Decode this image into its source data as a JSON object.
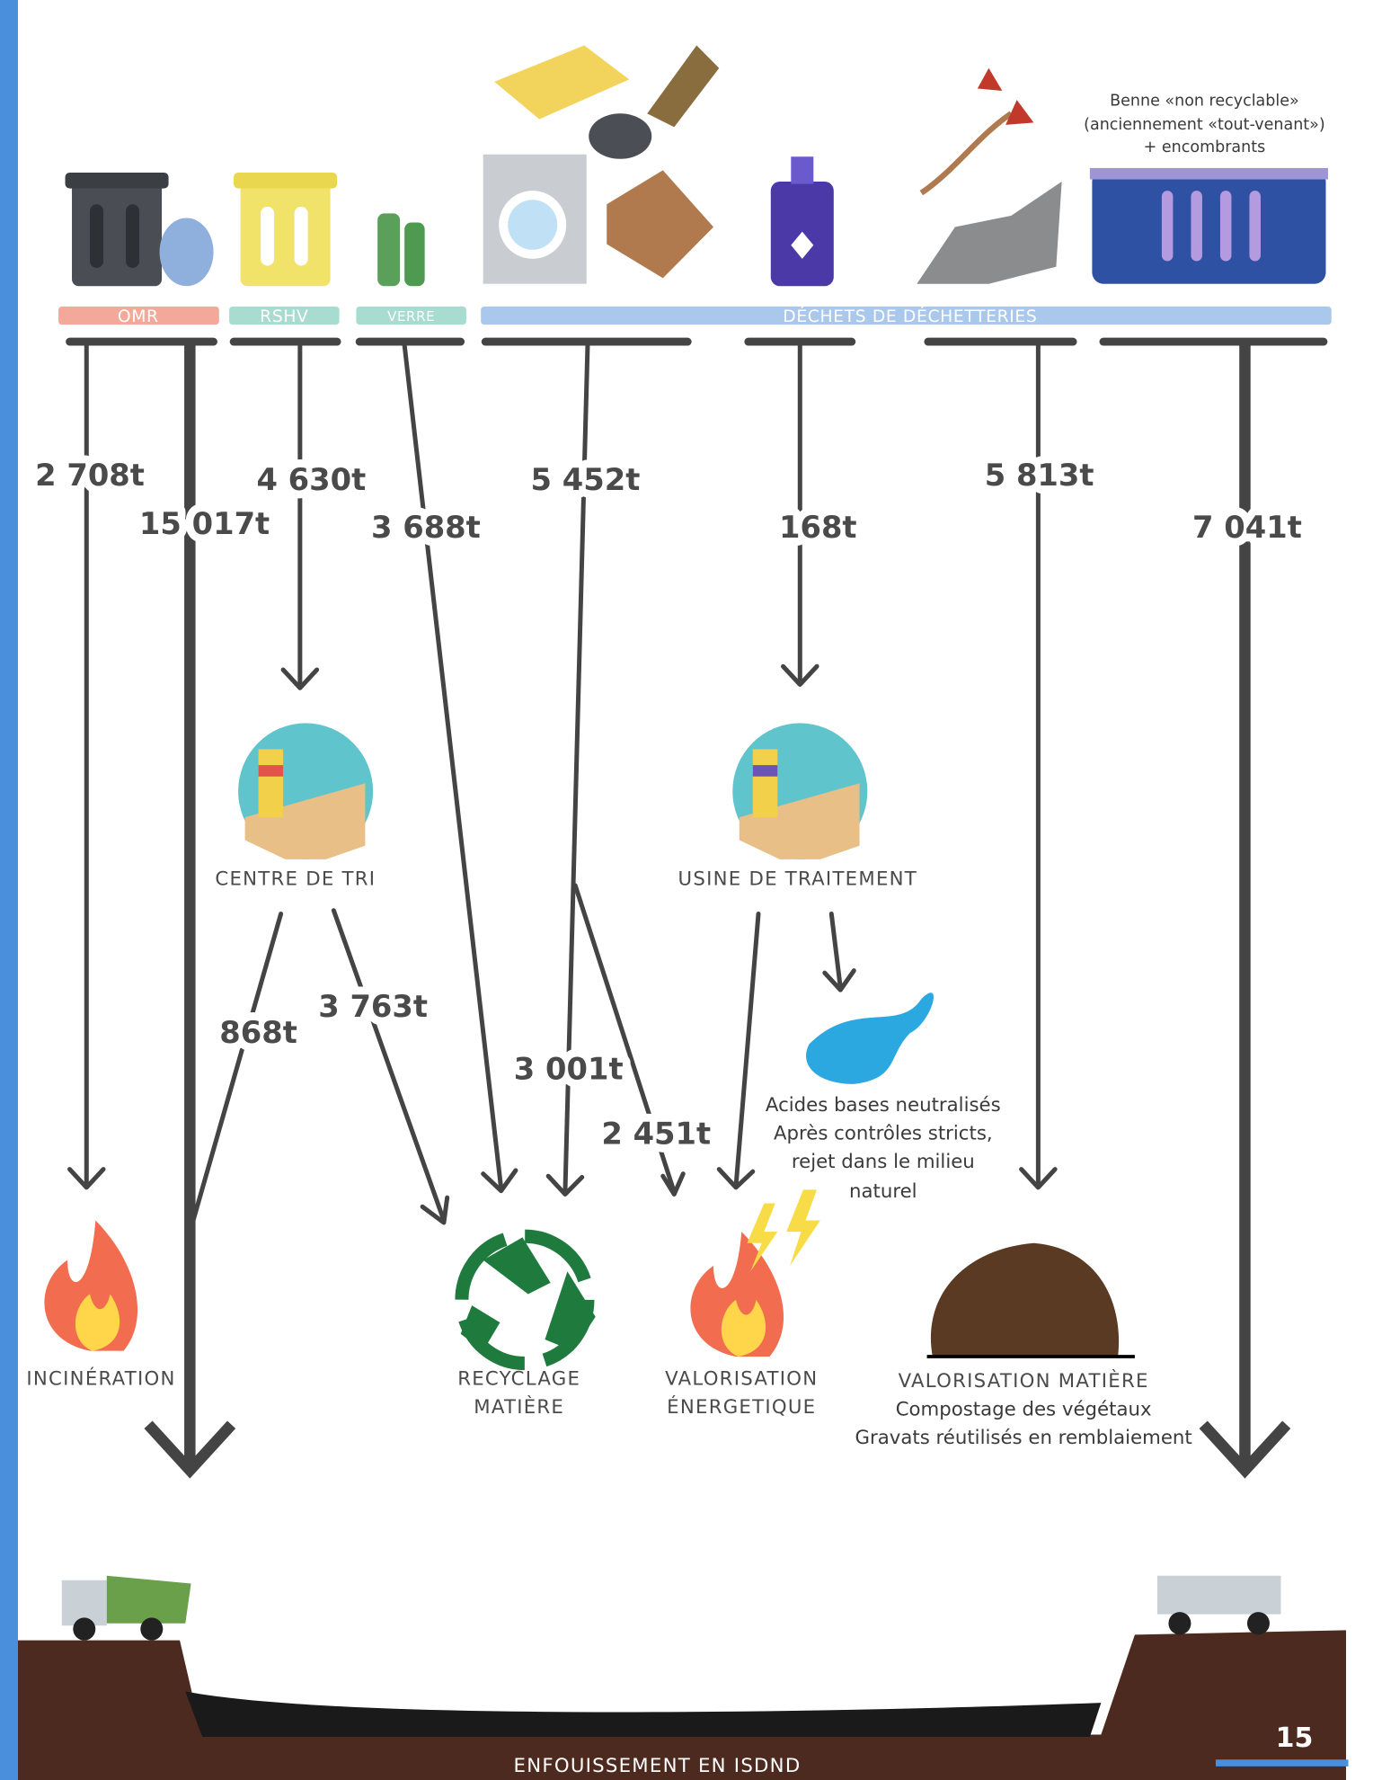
{
  "header": {
    "categories": [
      "OMR",
      "RSHV",
      "VERRE",
      "DÉCHETS DE DÉCHETTERIES"
    ],
    "benne_note": [
      "Benne «non recyclable»",
      "(anciennement «tout-venant»)",
      "+ encombrants"
    ]
  },
  "flows": [
    "2 708t",
    "15 017t",
    "4 630t",
    "3 688t",
    "5 452t",
    "168t",
    "5 813t",
    "7 041t",
    "868t",
    "3 763t",
    "3 001t",
    "2 451t"
  ],
  "destinations": {
    "incineration": "INCINÉRATION",
    "centre_de_tri": "CENTRE DE TRI",
    "usine": "USINE DE TRAITEMENT",
    "recyclage": [
      "RECYCLAGE",
      "MATIÈRE"
    ],
    "valorisation_energetique": [
      "VALORISATION",
      "ÉNERGETIQUE"
    ],
    "valorisation_matiere": [
      "VALORISATION MATIÈRE",
      "Compostage des végétaux",
      "Gravats réutilisés en remblaiement"
    ],
    "acides": [
      "Acides bases neutralisés",
      "Après contrôles stricts,",
      "rejet dans le milieu",
      "naturel"
    ],
    "enfouissement": "ENFOUISSEMENT EN ISDND"
  },
  "page_number": "15"
}
